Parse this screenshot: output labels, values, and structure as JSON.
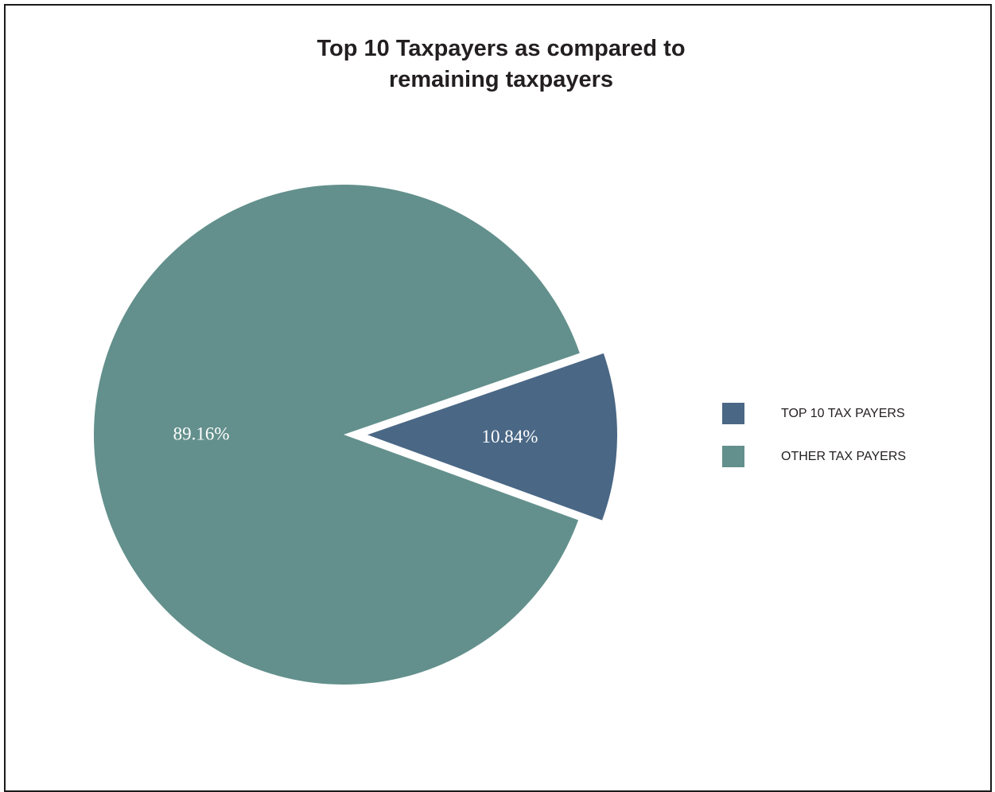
{
  "chart_data": {
    "type": "pie",
    "title": [
      "Top 10 Taxpayers as compared to",
      "remaining taxpayers"
    ],
    "slices": [
      {
        "label": "TOP 10 TAX PAYERS",
        "value": 10.84,
        "display": "10.84%",
        "color": "#4a6785",
        "exploded": true
      },
      {
        "label": "OTHER TAX PAYERS",
        "value": 89.16,
        "display": "89.16%",
        "color": "#63908c",
        "exploded": false
      }
    ],
    "legend_position": "right"
  }
}
